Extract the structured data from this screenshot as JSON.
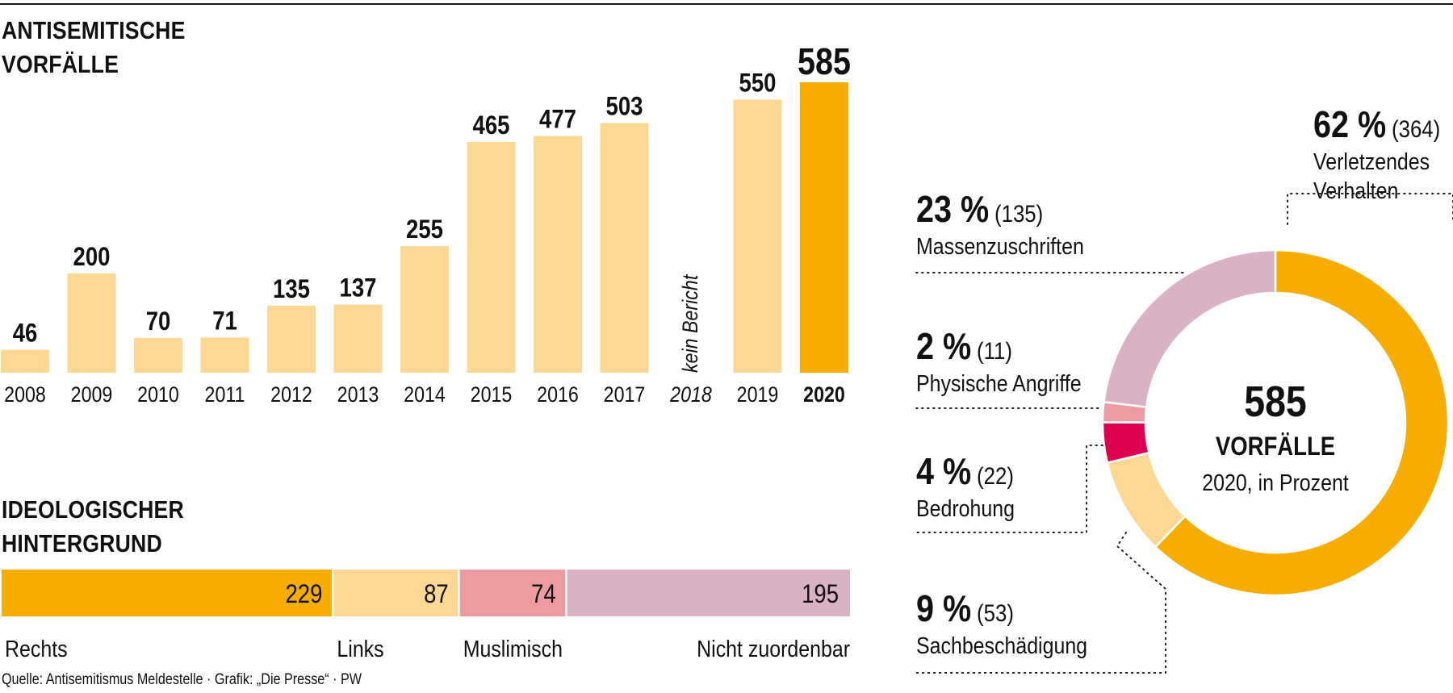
{
  "titles": {
    "bar_chart": [
      "ANTISEMITISCHE",
      "VORFÄLLE"
    ],
    "stacked_bar": [
      "IDEOLOGISCHER",
      "HINTERGRUND"
    ]
  },
  "source": "Quelle: Antisemitismus Meldestelle · Grafik: „Die Presse“ · PW",
  "colors": {
    "orange": "#F7AC00",
    "light_orange": "#FDD794",
    "salmon": "#EC9BA0",
    "crimson": "#DC004E",
    "mauve": "#D9B2C3",
    "text": "#111111"
  },
  "chart_data": [
    {
      "type": "bar",
      "title": "ANTISEMITISCHE VORFÄLLE",
      "xlabel": "",
      "ylabel": "",
      "grid": false,
      "categories": [
        "2008",
        "2009",
        "2010",
        "2011",
        "2012",
        "2013",
        "2014",
        "2015",
        "2016",
        "2017",
        "2018",
        "2019",
        "2020"
      ],
      "values": [
        46,
        200,
        70,
        71,
        135,
        137,
        255,
        465,
        477,
        503,
        null,
        550,
        585
      ],
      "highlight": "2020",
      "annotations": [
        {
          "category": "2018",
          "text": "kein Bericht"
        }
      ],
      "ylim": [
        0,
        585
      ]
    },
    {
      "type": "bar",
      "orientation": "horizontal-stacked",
      "title": "IDEOLOGISCHER HINTERGRUND",
      "categories": [
        "Rechts",
        "Links",
        "Muslimisch",
        "Nicht zuordenbar"
      ],
      "values": [
        229,
        87,
        74,
        195
      ],
      "colors": [
        "#F7AC00",
        "#FDD794",
        "#EC9BA0",
        "#D9B2C3"
      ]
    },
    {
      "type": "pie",
      "variant": "donut",
      "center_value": "585",
      "center_label": "VORFÄLLE",
      "center_sublabel": "2020, in Prozent",
      "slices": [
        {
          "label": "Verletzendes Verhalten",
          "label_lines": [
            "Verletzendes",
            "Verhalten"
          ],
          "percent": "62 %",
          "count": 364,
          "count_text": "(364)",
          "color": "#F7AC00"
        },
        {
          "label": "Sachbeschädigung",
          "label_lines": [
            "Sachbeschädigung"
          ],
          "percent": "9 %",
          "count": 53,
          "count_text": "(53)",
          "color": "#FDD794"
        },
        {
          "label": "Bedrohung",
          "label_lines": [
            "Bedrohung"
          ],
          "percent": "4 %",
          "count": 22,
          "count_text": "(22)",
          "color": "#DC004E"
        },
        {
          "label": "Physische Angriffe",
          "label_lines": [
            "Physische Angriffe"
          ],
          "percent": "2 %",
          "count": 11,
          "count_text": "(11)",
          "color": "#EC9BA0"
        },
        {
          "label": "Massenzuschriften",
          "label_lines": [
            "Massenzuschriften"
          ],
          "percent": "23 %",
          "count": 135,
          "count_text": "(135)",
          "color": "#D9B2C3"
        }
      ]
    }
  ]
}
